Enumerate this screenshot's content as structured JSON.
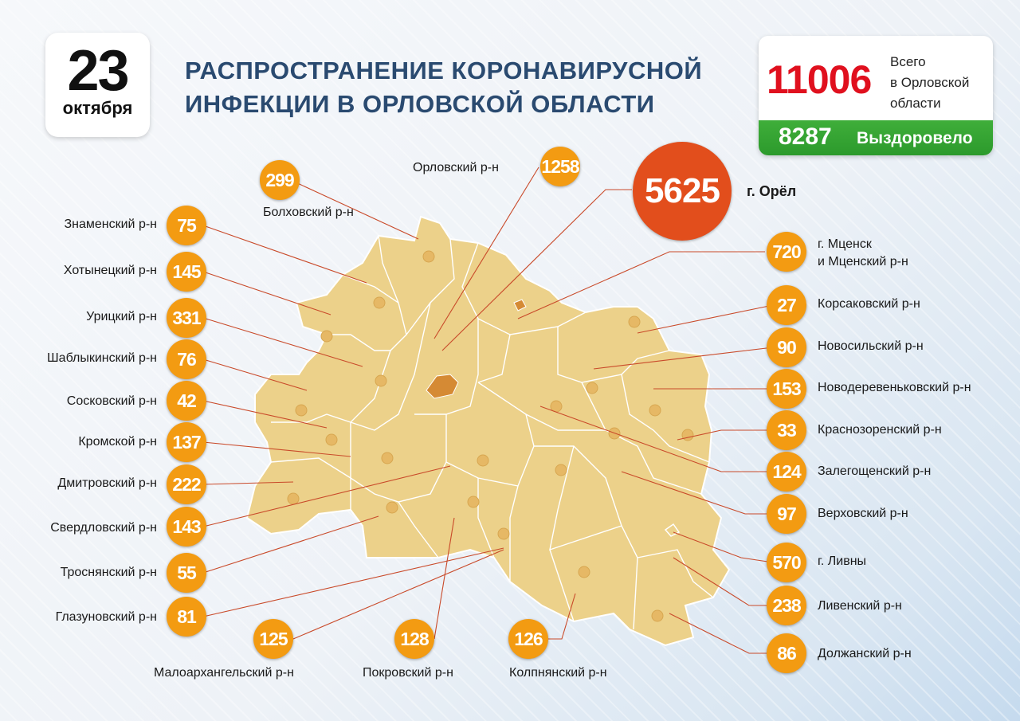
{
  "date": {
    "day": "23",
    "month": "октября"
  },
  "title": {
    "line1": "РАСПРОСТРАНЕНИЕ КОРОНАВИРУСНОЙ",
    "line2": "ИНФЕКЦИИ В ОРЛОВСКОЙ ОБЛАСТИ"
  },
  "totals": {
    "total": "11006",
    "total_label_1": "Всего",
    "total_label_2": "в Орловской",
    "total_label_3": "области",
    "recovered": "8287",
    "recovered_label": "Выздоровело"
  },
  "colors": {
    "badge": "#f39b12",
    "city_badge": "#e24e1c",
    "region_fill": "#ecd18a",
    "recovered_bar": "#3fae3a",
    "total_number": "#e0101e"
  },
  "districts": [
    {
      "id": "znamensky",
      "name": "Знаменский р-н",
      "count": "75"
    },
    {
      "id": "khotynetsky",
      "name": "Хотынецкий р-н",
      "count": "145"
    },
    {
      "id": "uritsky",
      "name": "Урицкий р-н",
      "count": "331"
    },
    {
      "id": "shablykinsky",
      "name": "Шаблыкинский р-н",
      "count": "76"
    },
    {
      "id": "sosskovsky",
      "name": "Сосковский р-н",
      "count": "42"
    },
    {
      "id": "kromskoy",
      "name": "Кромской р-н",
      "count": "137"
    },
    {
      "id": "dmitrovsky",
      "name": "Дмитровский р-н",
      "count": "222"
    },
    {
      "id": "sverdlovsky",
      "name": "Свердловский р-н",
      "count": "143"
    },
    {
      "id": "trosnyansky",
      "name": "Троснянский р-н",
      "count": "55"
    },
    {
      "id": "glazunovsky",
      "name": "Глазуновский р-н",
      "count": "81"
    },
    {
      "id": "bolkhovsky",
      "name": "Болховский р-н",
      "count": "299"
    },
    {
      "id": "orlovsky",
      "name": "Орловский р-н",
      "count": "1258"
    },
    {
      "id": "orel",
      "name": "г. Орёл",
      "count": "5625"
    },
    {
      "id": "mtsensk",
      "name_1": "г. Мценск",
      "name_2": "и Мценский р-н",
      "count": "720"
    },
    {
      "id": "korsakovsky",
      "name": "Корсаковский р-н",
      "count": "27"
    },
    {
      "id": "novosilsky",
      "name": "Новосильский р-н",
      "count": "90"
    },
    {
      "id": "novoderevenkovsky",
      "name": "Новодеревеньковский р-н",
      "count": "153"
    },
    {
      "id": "krasnozorensky",
      "name": "Краснозоренский р-н",
      "count": "33"
    },
    {
      "id": "zalegoshchensky",
      "name": "Залегощенский р-н",
      "count": "124"
    },
    {
      "id": "verkhovsky",
      "name": "Верховский р-н",
      "count": "97"
    },
    {
      "id": "livny",
      "name": "г. Ливны",
      "count": "570"
    },
    {
      "id": "livensky",
      "name": "Ливенский р-н",
      "count": "238"
    },
    {
      "id": "dolzhansky",
      "name": "Должанский р-н",
      "count": "86"
    },
    {
      "id": "maloarkhangelsky",
      "name": "Малоархангельский р-н",
      "count": "125"
    },
    {
      "id": "pokrovsky",
      "name": "Покровский р-н",
      "count": "128"
    },
    {
      "id": "kolpnyansky",
      "name": "Колпнянский р-н",
      "count": "126"
    }
  ]
}
